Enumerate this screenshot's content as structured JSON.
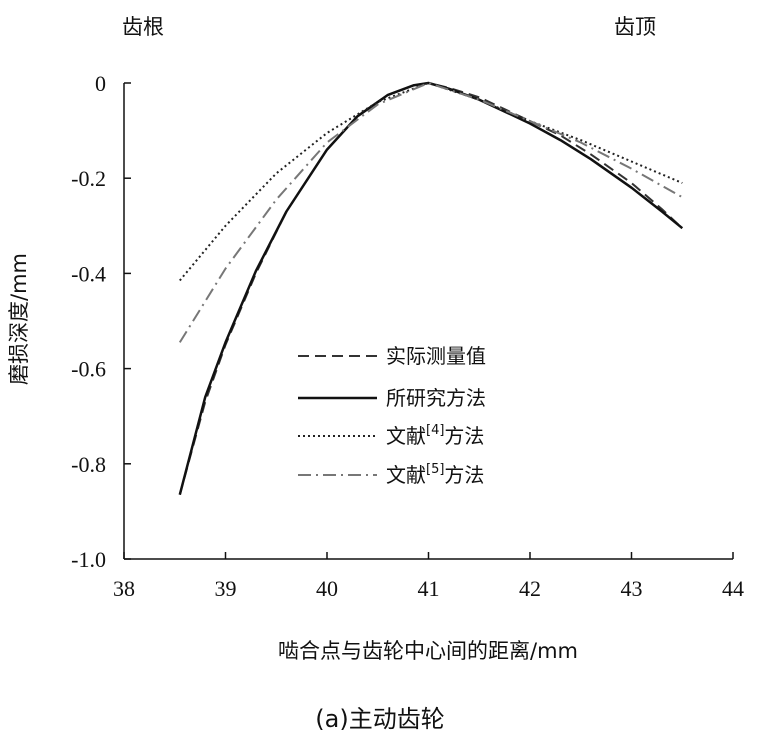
{
  "chart_data": {
    "type": "line",
    "title": "",
    "caption": "(a)主动齿轮",
    "xlabel": "啮合点与齿轮中心间的距离/mm",
    "ylabel": "磨损深度/mm",
    "xlim": [
      38,
      44
    ],
    "ylim": [
      -1.0,
      0
    ],
    "x_ticks": [
      38,
      39,
      40,
      41,
      42,
      43,
      44
    ],
    "x_tick_labels": [
      "38",
      "39",
      "40",
      "41",
      "42",
      "43",
      "44"
    ],
    "y_ticks": [
      0,
      -0.2,
      -0.4,
      -0.6,
      -0.8,
      -1.0
    ],
    "y_tick_labels": [
      "0",
      "-0.2",
      "-0.4",
      "-0.6",
      "-0.8",
      "-1.0"
    ],
    "grid": false,
    "legend_position": "center-bottom",
    "annotations": [
      {
        "text": "齿根",
        "position": "top-left"
      },
      {
        "text": "齿顶",
        "position": "top-right"
      }
    ],
    "series": [
      {
        "name": "实际测量值",
        "style": "dashed",
        "x": [
          38.55,
          38.8,
          39.0,
          39.3,
          39.6,
          40.0,
          40.3,
          40.6,
          40.85,
          41.0,
          41.2,
          41.5,
          41.8,
          42.0,
          42.3,
          42.6,
          43.0,
          43.3,
          43.5
        ],
        "y": [
          -0.865,
          -0.67,
          -0.55,
          -0.4,
          -0.27,
          -0.14,
          -0.07,
          -0.025,
          -0.005,
          0.0,
          -0.01,
          -0.03,
          -0.06,
          -0.08,
          -0.11,
          -0.15,
          -0.21,
          -0.265,
          -0.305
        ]
      },
      {
        "name": "所研究方法",
        "style": "solid",
        "x": [
          38.55,
          38.8,
          39.0,
          39.3,
          39.6,
          40.0,
          40.3,
          40.6,
          40.85,
          41.0,
          41.2,
          41.5,
          41.8,
          42.0,
          42.3,
          42.6,
          43.0,
          43.3,
          43.5
        ],
        "y": [
          -0.865,
          -0.66,
          -0.545,
          -0.395,
          -0.27,
          -0.14,
          -0.07,
          -0.025,
          -0.005,
          0.0,
          -0.012,
          -0.035,
          -0.065,
          -0.085,
          -0.12,
          -0.16,
          -0.22,
          -0.27,
          -0.305
        ]
      },
      {
        "name": "文献[4]方法",
        "style": "dotted",
        "x": [
          38.55,
          39.0,
          39.5,
          40.0,
          40.5,
          41.0,
          41.5,
          42.0,
          42.5,
          43.0,
          43.5
        ],
        "y": [
          -0.415,
          -0.3,
          -0.19,
          -0.105,
          -0.04,
          0.0,
          -0.035,
          -0.08,
          -0.12,
          -0.165,
          -0.21
        ]
      },
      {
        "name": "文献[5]方法",
        "style": "dashdot",
        "x": [
          38.55,
          39.0,
          39.5,
          40.0,
          40.5,
          41.0,
          41.5,
          42.0,
          42.5,
          43.0,
          43.5
        ],
        "y": [
          -0.545,
          -0.39,
          -0.245,
          -0.125,
          -0.045,
          0.0,
          -0.035,
          -0.08,
          -0.125,
          -0.18,
          -0.24
        ]
      }
    ]
  },
  "legend": {
    "items": [
      {
        "main": "实际测量值",
        "sup": "",
        "tail": ""
      },
      {
        "main": "所研究方法",
        "sup": "",
        "tail": ""
      },
      {
        "main": "文献",
        "sup": "[4]",
        "tail": "方法"
      },
      {
        "main": "文献",
        "sup": "[5]",
        "tail": "方法"
      }
    ]
  }
}
